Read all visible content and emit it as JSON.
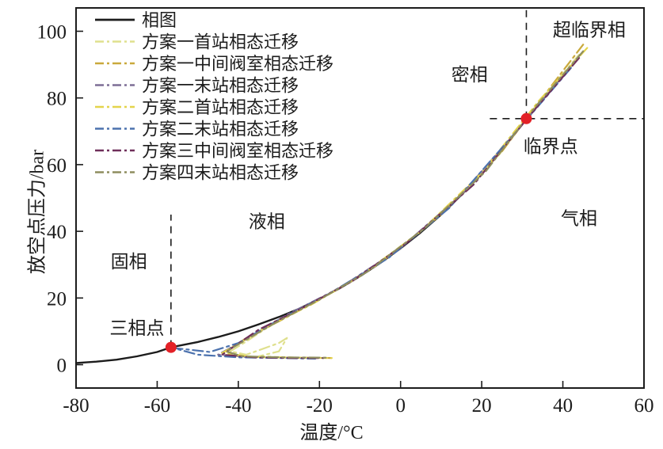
{
  "chart_data": {
    "type": "line",
    "title": "",
    "xlabel": "温度/°C",
    "ylabel": "放空点压力/bar",
    "xlim": [
      -80,
      60
    ],
    "ylim": [
      -7,
      107
    ],
    "grid": false,
    "legend_position": "upper-left-inside",
    "xticks": [
      {
        "v": -80,
        "label": "-80"
      },
      {
        "v": -60,
        "label": "-60"
      },
      {
        "v": -40,
        "label": "-40"
      },
      {
        "v": -20,
        "label": "-20"
      },
      {
        "v": 0,
        "label": "0"
      },
      {
        "v": 20,
        "label": "20"
      },
      {
        "v": 40,
        "label": "40"
      },
      {
        "v": 60,
        "label": "60"
      }
    ],
    "yticks": [
      {
        "v": 0,
        "label": "0"
      },
      {
        "v": 20,
        "label": "20"
      },
      {
        "v": 40,
        "label": "40"
      },
      {
        "v": 60,
        "label": "60"
      },
      {
        "v": 80,
        "label": "80"
      },
      {
        "v": 100,
        "label": "100"
      }
    ],
    "series": [
      {
        "name": "相图",
        "color": "#1c1c1c",
        "style": "solid",
        "width": 2.4,
        "points": [
          [
            -80,
            0.5
          ],
          [
            -75,
            0.9
          ],
          [
            -70,
            1.5
          ],
          [
            -65,
            2.5
          ],
          [
            -60,
            3.8
          ],
          [
            -56.6,
            5.2
          ],
          [
            -50,
            6.8
          ],
          [
            -45,
            8.3
          ],
          [
            -40,
            10.0
          ],
          [
            -35,
            12.1
          ],
          [
            -30,
            14.3
          ],
          [
            -25,
            16.8
          ],
          [
            -20,
            19.7
          ],
          [
            -15,
            22.9
          ],
          [
            -10,
            26.5
          ],
          [
            -5,
            30.5
          ],
          [
            0,
            34.9
          ],
          [
            5,
            39.7
          ],
          [
            10,
            45.0
          ],
          [
            15,
            50.9
          ],
          [
            20,
            57.3
          ],
          [
            25,
            64.3
          ],
          [
            30,
            72.1
          ],
          [
            31,
            73.8
          ]
        ]
      },
      {
        "name": "方案一首站相态迁移",
        "color": "#dfe08e",
        "style": "dashdot",
        "width": 2.2,
        "points": [
          [
            44,
            93
          ],
          [
            35,
            80
          ],
          [
            31,
            74
          ],
          [
            25,
            64
          ],
          [
            15,
            51
          ],
          [
            5,
            40
          ],
          [
            -5,
            30.5
          ],
          [
            -15,
            23
          ],
          [
            -25,
            16.5
          ],
          [
            -33,
            11
          ],
          [
            -38,
            7
          ],
          [
            -42,
            4
          ],
          [
            -38,
            3
          ],
          [
            -30,
            6.5
          ],
          [
            -28,
            8
          ],
          [
            -30,
            4
          ],
          [
            -35,
            2.5
          ],
          [
            -25,
            2.1
          ],
          [
            -18,
            2
          ]
        ]
      },
      {
        "name": "方案一中间阀室相态迁移",
        "color": "#c9a93c",
        "style": "dashdot",
        "width": 2.2,
        "points": [
          [
            45,
            96
          ],
          [
            33,
            77
          ],
          [
            25,
            64
          ],
          [
            10,
            45
          ],
          [
            -5,
            30.5
          ],
          [
            -20,
            19.5
          ],
          [
            -30,
            13
          ],
          [
            -38,
            8
          ],
          [
            -43,
            4
          ],
          [
            -40,
            2.5
          ],
          [
            -32,
            2.2
          ],
          [
            -22,
            2.1
          ],
          [
            -17,
            2
          ]
        ]
      },
      {
        "name": "方案一末站相态迁移",
        "color": "#7d6e96",
        "style": "dashdot",
        "width": 2.2,
        "points": [
          [
            43,
            91
          ],
          [
            30,
            72
          ],
          [
            15,
            51
          ],
          [
            0,
            35
          ],
          [
            -15,
            23
          ],
          [
            -28,
            15
          ],
          [
            -36,
            9
          ],
          [
            -42,
            5
          ],
          [
            -45,
            3
          ],
          [
            -38,
            2.3
          ],
          [
            -28,
            2.1
          ],
          [
            -20,
            2
          ]
        ]
      },
      {
        "name": "方案二首站相态迁移",
        "color": "#e4d44c",
        "style": "dashdot",
        "width": 2.2,
        "points": [
          [
            46,
            95
          ],
          [
            34,
            79
          ],
          [
            20,
            57.5
          ],
          [
            5,
            40
          ],
          [
            -10,
            26.5
          ],
          [
            -22,
            18
          ],
          [
            -32,
            12
          ],
          [
            -39,
            7
          ],
          [
            -44,
            3.5
          ],
          [
            -36,
            2.3
          ],
          [
            -26,
            2.1
          ],
          [
            -17,
            2
          ]
        ]
      },
      {
        "name": "方案二末站相态迁移",
        "color": "#4c72ae",
        "style": "dashdot",
        "width": 2.2,
        "points": [
          [
            42,
            89
          ],
          [
            30,
            72
          ],
          [
            12,
            47
          ],
          [
            -3,
            32
          ],
          [
            -18,
            21
          ],
          [
            -30,
            13.5
          ],
          [
            -40,
            6.5
          ],
          [
            -47,
            3.8
          ],
          [
            -52,
            4.5
          ],
          [
            -56,
            5
          ],
          [
            -50,
            3
          ],
          [
            -40,
            2.2
          ],
          [
            -30,
            2
          ],
          [
            -21,
            1.8
          ]
        ]
      },
      {
        "name": "方案三中间阀室相态迁移",
        "color": "#6f2f5a",
        "style": "dashdot",
        "width": 2.2,
        "points": [
          [
            44,
            92
          ],
          [
            32,
            75
          ],
          [
            18,
            54
          ],
          [
            2,
            37
          ],
          [
            -12,
            25
          ],
          [
            -25,
            16.5
          ],
          [
            -35,
            10.5
          ],
          [
            -41,
            5.5
          ],
          [
            -44,
            3
          ],
          [
            -36,
            2.2
          ],
          [
            -27,
            2
          ],
          [
            -19,
            2
          ]
        ]
      },
      {
        "name": "方案四末站相态迁移",
        "color": "#8e8d5f",
        "style": "dashdot",
        "width": 2.2,
        "points": [
          [
            45,
            94
          ],
          [
            33,
            77
          ],
          [
            21,
            58
          ],
          [
            6,
            41
          ],
          [
            -8,
            28
          ],
          [
            -20,
            19.5
          ],
          [
            -31,
            12.5
          ],
          [
            -38,
            7.5
          ],
          [
            -43,
            4
          ],
          [
            -39,
            2.5
          ],
          [
            -29,
            2.2
          ],
          [
            -18,
            2.1
          ]
        ]
      }
    ],
    "guides": [
      {
        "name": "critical-temperature-dashed-line",
        "x1": 31,
        "y1": 73.8,
        "x2": 31,
        "y2": 107
      },
      {
        "name": "critical-pressure-dashed-line",
        "x1": 22,
        "y1": 73.8,
        "x2": 60,
        "y2": 73.8
      },
      {
        "name": "triple-point-dashed-line",
        "x1": -56.6,
        "y1": 5.2,
        "x2": -56.6,
        "y2": 45
      }
    ],
    "markers": [
      {
        "name": "triple-point-marker",
        "x": -56.6,
        "y": 5.2,
        "color": "#e32127",
        "r": 7
      },
      {
        "name": "critical-point-marker",
        "x": 31,
        "y": 73.8,
        "color": "#e32127",
        "r": 7
      }
    ],
    "annotations": [
      {
        "name": "supercritical-phase-label",
        "text": "超临界相",
        "x": 46.5,
        "y": 100.5
      },
      {
        "name": "dense-phase-label",
        "text": "密相",
        "x": 17,
        "y": 87
      },
      {
        "name": "critical-point-label",
        "text": "临界点",
        "x": 37,
        "y": 65.5
      },
      {
        "name": "gas-phase-label",
        "text": "气相",
        "x": 44,
        "y": 44
      },
      {
        "name": "liquid-phase-label",
        "text": "液相",
        "x": -33,
        "y": 43
      },
      {
        "name": "solid-phase-label",
        "text": "固相",
        "x": -67,
        "y": 31
      },
      {
        "name": "triple-point-label",
        "text": "三相点",
        "x": -65,
        "y": 11
      }
    ]
  }
}
